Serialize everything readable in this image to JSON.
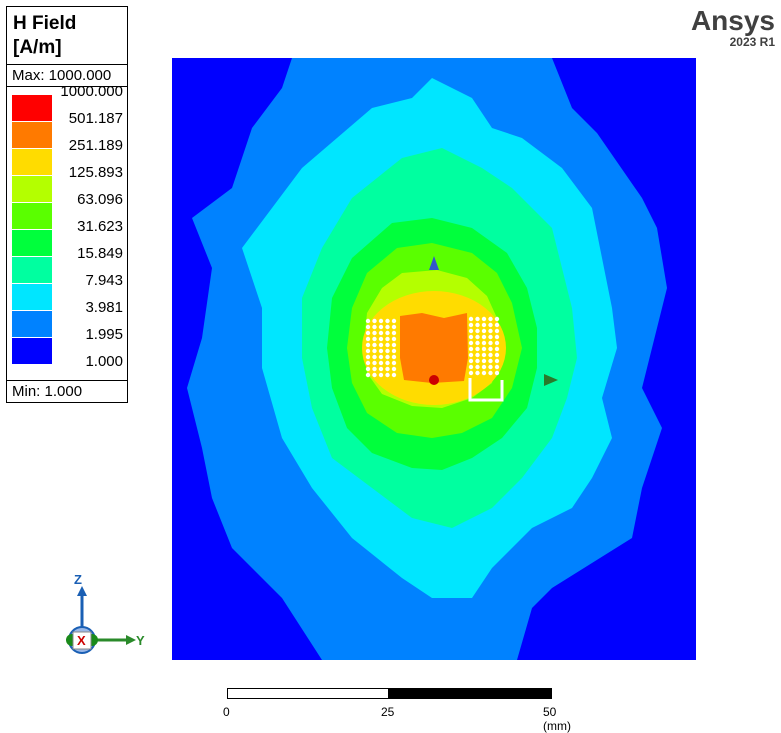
{
  "legend": {
    "title": "H Field\n[A/m]",
    "max_label": "Max: 1000.000",
    "min_label": "Min:    1.000",
    "levels": [
      {
        "value": "1000.000",
        "color": "#ff0000"
      },
      {
        "value": "501.187",
        "color": "#ff7a00"
      },
      {
        "value": "251.189",
        "color": "#ffdc00"
      },
      {
        "value": "125.893",
        "color": "#b4ff00"
      },
      {
        "value": "63.096",
        "color": "#5aff00"
      },
      {
        "value": "31.623",
        "color": "#00ff3c"
      },
      {
        "value": "15.849",
        "color": "#00ffa0"
      },
      {
        "value": "7.943",
        "color": "#00e6ff"
      },
      {
        "value": "3.981",
        "color": "#0082ff"
      },
      {
        "value": "1.995",
        "color": "#0000ff"
      },
      {
        "value": "1.000",
        "color": ""
      }
    ]
  },
  "brand": {
    "name": "Ansys",
    "version": "2023 R1"
  },
  "triad": {
    "z": "Z",
    "x": "X",
    "y": "Y"
  },
  "scale": {
    "zero": "0",
    "mid": "25",
    "end": "50 (mm)"
  }
}
